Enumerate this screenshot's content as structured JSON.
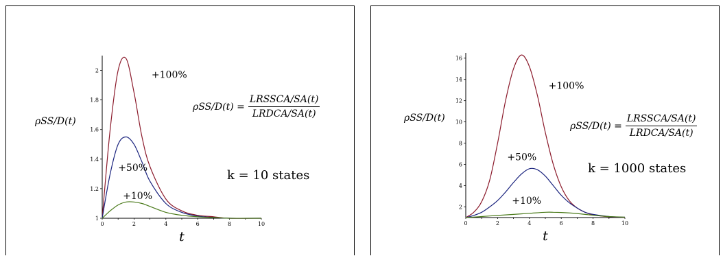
{
  "panels": [
    {
      "y_label": "ρSS/D(t)",
      "formula": {
        "lhs": "ρSS/D(t) =",
        "numerator": "LRSSCA/SA(t)",
        "denominator": "LRDCA/SA(t)"
      },
      "k_label": "k = 10 states"
    },
    {
      "y_label": "ρSS/D(t)",
      "formula": {
        "lhs": "ρSS/D(t) =",
        "numerator": "LRSSCA/SA(t)",
        "denominator": "LRDCA/SA(t)"
      },
      "k_label": "k = 1000 states"
    }
  ],
  "chart_data": [
    {
      "type": "line",
      "xlabel": "t",
      "ylabel": "ρSS/D(t)",
      "xlim": [
        0,
        10
      ],
      "ylim": [
        1,
        2.1
      ],
      "x_ticks": [
        0,
        2,
        4,
        6,
        8,
        10
      ],
      "y_ticks": [
        1,
        1.2,
        1.4,
        1.6,
        1.8,
        2
      ],
      "grid": false,
      "series": [
        {
          "name": "+100%",
          "color": "#8b1a2b",
          "x": [
            0,
            0.5,
            1,
            1.5,
            2,
            2.5,
            3,
            4,
            5,
            6,
            7,
            8,
            10
          ],
          "y": [
            1,
            1.6,
            2.0,
            2.08,
            1.85,
            1.55,
            1.35,
            1.13,
            1.05,
            1.02,
            1.01,
            1.0,
            1.0
          ]
        },
        {
          "name": "+50%",
          "color": "#1a237e",
          "x": [
            0,
            0.5,
            1,
            1.5,
            2,
            2.5,
            3,
            4,
            5,
            6,
            7,
            8,
            10
          ],
          "y": [
            1,
            1.3,
            1.5,
            1.55,
            1.5,
            1.38,
            1.25,
            1.1,
            1.04,
            1.015,
            1.005,
            1.0,
            1.0
          ]
        },
        {
          "name": "+10%",
          "color": "#4a7a1a",
          "x": [
            0,
            0.5,
            1,
            1.5,
            2,
            2.5,
            3,
            4,
            5,
            6,
            7,
            8,
            10
          ],
          "y": [
            1,
            1.05,
            1.09,
            1.11,
            1.11,
            1.1,
            1.08,
            1.04,
            1.02,
            1.01,
            1.005,
            1.0,
            1.0
          ]
        }
      ],
      "annotations": [
        {
          "text": "+100%",
          "x": 3.1,
          "y": 1.95
        },
        {
          "text": "+50%",
          "x": 1.0,
          "y": 1.32
        },
        {
          "text": "+10%",
          "x": 1.3,
          "y": 1.13
        }
      ]
    },
    {
      "type": "line",
      "xlabel": "t",
      "ylabel": "ρSS/D(t)",
      "xlim": [
        0,
        10
      ],
      "ylim": [
        1,
        16.5
      ],
      "x_ticks": [
        0,
        2,
        4,
        6,
        8,
        10
      ],
      "y_ticks": [
        2,
        4,
        6,
        8,
        10,
        12,
        14,
        16
      ],
      "grid": false,
      "series": [
        {
          "name": "+100%",
          "color": "#8b1a2b",
          "x": [
            0,
            0.5,
            1,
            1.5,
            2,
            2.5,
            3,
            3.5,
            4,
            4.5,
            5,
            5.5,
            6,
            6.5,
            7,
            7.5,
            8,
            9,
            10
          ],
          "y": [
            1,
            1.5,
            2.5,
            4.5,
            8,
            12,
            15,
            16.3,
            15.2,
            12.5,
            9,
            6,
            3.9,
            2.6,
            1.9,
            1.5,
            1.25,
            1.08,
            1.02
          ]
        },
        {
          "name": "+50%",
          "color": "#1a237e",
          "x": [
            0,
            0.5,
            1,
            1.5,
            2,
            2.5,
            3,
            3.5,
            4,
            4.5,
            5,
            5.5,
            6,
            6.5,
            7,
            7.5,
            8,
            9,
            10
          ],
          "y": [
            1,
            1.2,
            1.5,
            2.0,
            2.6,
            3.4,
            4.3,
            5.1,
            5.6,
            5.5,
            4.9,
            4.0,
            3.1,
            2.4,
            1.9,
            1.5,
            1.3,
            1.1,
            1.03
          ]
        },
        {
          "name": "+10%",
          "color": "#4a7a1a",
          "x": [
            0,
            1,
            2,
            3,
            4,
            5,
            5.5,
            6,
            7,
            8,
            9,
            10
          ],
          "y": [
            1,
            1.1,
            1.2,
            1.3,
            1.4,
            1.5,
            1.5,
            1.48,
            1.38,
            1.22,
            1.1,
            1.04
          ]
        }
      ],
      "annotations": [
        {
          "text": "+100%",
          "x": 5.2,
          "y": 13.1
        },
        {
          "text": "+50%",
          "x": 2.6,
          "y": 6.4
        },
        {
          "text": "+10%",
          "x": 2.9,
          "y": 2.3
        }
      ]
    }
  ]
}
